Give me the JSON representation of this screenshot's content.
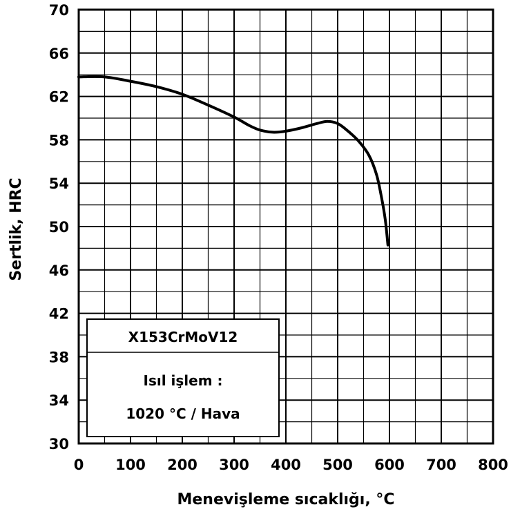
{
  "chart_data": {
    "type": "line",
    "title": "",
    "xlabel": "Menevişleme sıcaklığı, °C",
    "ylabel": "Sertlik, HRC",
    "xlim": [
      0,
      800
    ],
    "ylim": [
      30,
      70
    ],
    "x_ticks": [
      "0",
      "100",
      "200",
      "300",
      "400",
      "500",
      "600",
      "700",
      "800"
    ],
    "y_ticks": [
      "30",
      "34",
      "38",
      "42",
      "46",
      "50",
      "54",
      "58",
      "62",
      "66",
      "70"
    ],
    "grid": true,
    "grid_minor_x_step": 50,
    "grid_minor_y_step": 2,
    "legend": {
      "placement": "bottom-left",
      "title": "X153CrMoV12",
      "lines": [
        "Isıl işlem :",
        "1020 °C / Hava"
      ]
    },
    "series": [
      {
        "color": "#000000",
        "x": [
          0,
          50,
          100,
          150,
          200,
          250,
          300,
          330,
          350,
          375,
          400,
          430,
          460,
          480,
          500,
          520,
          540,
          560,
          575,
          585,
          592,
          597
        ],
        "y": [
          63.8,
          63.8,
          63.4,
          62.9,
          62.2,
          61.2,
          60.1,
          59.3,
          58.9,
          58.7,
          58.8,
          59.1,
          59.5,
          59.7,
          59.5,
          58.8,
          57.9,
          56.6,
          54.8,
          52.6,
          50.6,
          48.3
        ]
      }
    ]
  }
}
